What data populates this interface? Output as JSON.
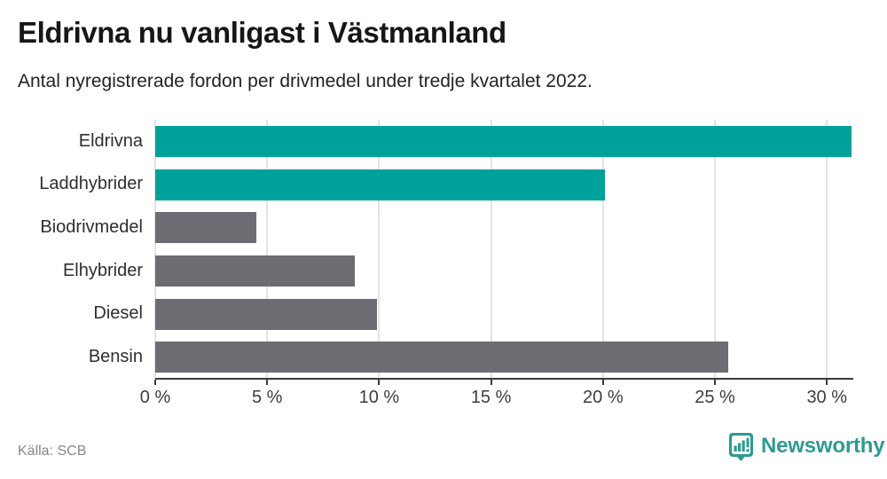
{
  "title": "Eldrivna nu vanligast i Västmanland",
  "subtitle": "Antal nyregistrerade fordon per drivmedel under tredje kvartalet 2022.",
  "source": "Källa: SCB",
  "brand": {
    "name": "Newsworthy",
    "icon": "newsworthy-chart-bubble-icon",
    "color": "#2d9b90"
  },
  "colors": {
    "highlight_bar": "#00a19a",
    "default_bar": "#6c6c72",
    "gridline": "#e3e3e3",
    "axis": "#3b3b3b",
    "title_text": "#161616",
    "source_text": "#878787"
  },
  "chart_data": {
    "type": "bar",
    "orientation": "horizontal",
    "title": "Eldrivna nu vanligast i Västmanland",
    "subtitle": "Antal nyregistrerade fordon per drivmedel under tredje kvartalet 2022.",
    "xlabel": "",
    "ylabel": "",
    "unit": "%",
    "categories": [
      "Eldrivna",
      "Laddhybrider",
      "Biodrivmedel",
      "Elhybrider",
      "Diesel",
      "Bensin"
    ],
    "values": [
      31.1,
      20.1,
      4.5,
      8.9,
      9.9,
      25.6
    ],
    "bar_colors": [
      "#00a19a",
      "#00a19a",
      "#6c6c72",
      "#6c6c72",
      "#6c6c72",
      "#6c6c72"
    ],
    "xlim": [
      0,
      31.1
    ],
    "ticks": [
      0,
      5,
      10,
      15,
      20,
      25,
      30
    ],
    "tick_labels": [
      "0 %",
      "5 %",
      "10 %",
      "15 %",
      "20 %",
      "25 %",
      "30 %"
    ],
    "grid": true,
    "legend": "none"
  }
}
